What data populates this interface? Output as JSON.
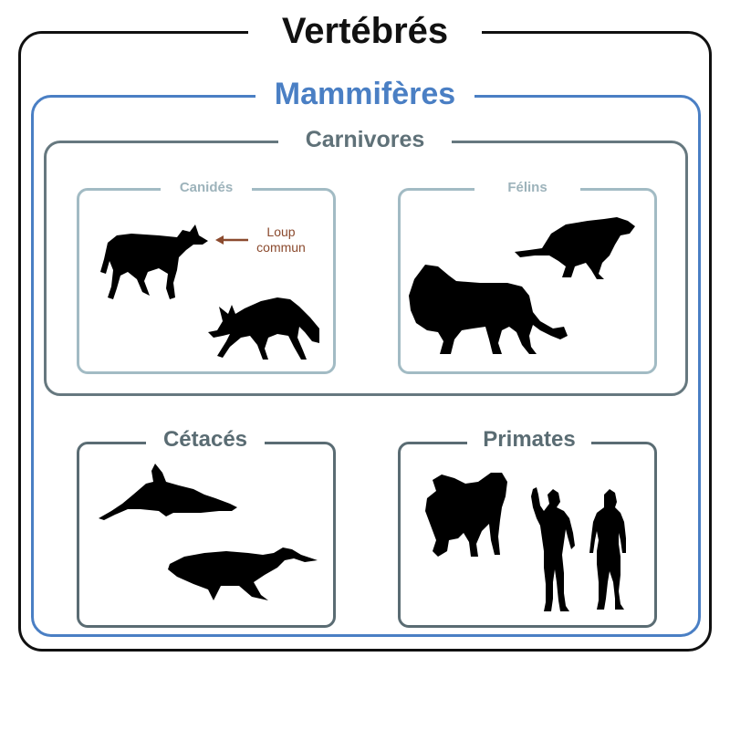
{
  "diagram": {
    "vertebres": {
      "title": "Vertébrés"
    },
    "mammiferes": {
      "title": "Mammifères"
    },
    "carnivores": {
      "title": "Carnivores"
    },
    "canides": {
      "title": "Canidés",
      "annotation": {
        "line1": "Loup",
        "line2": "commun",
        "arrow_color": "#8b4a2e"
      }
    },
    "felins": {
      "title": "Félins"
    },
    "cetaces": {
      "title": "Cétacés"
    },
    "primates": {
      "title": "Primates"
    }
  },
  "colors": {
    "vertebres_border": "#111111",
    "mammiferes": "#4a7fc4",
    "carnivores": "#5f7178",
    "subgroup_light": "#a2bbc4",
    "subgroup_dark": "#5a6c73",
    "silhouette": "#000000"
  },
  "icons": [
    "wolf-icon",
    "jackal-icon",
    "cougar-icon",
    "lion-icon",
    "dolphin-icon",
    "whale-icon",
    "baboon-icon",
    "man-icon",
    "woman-icon"
  ]
}
